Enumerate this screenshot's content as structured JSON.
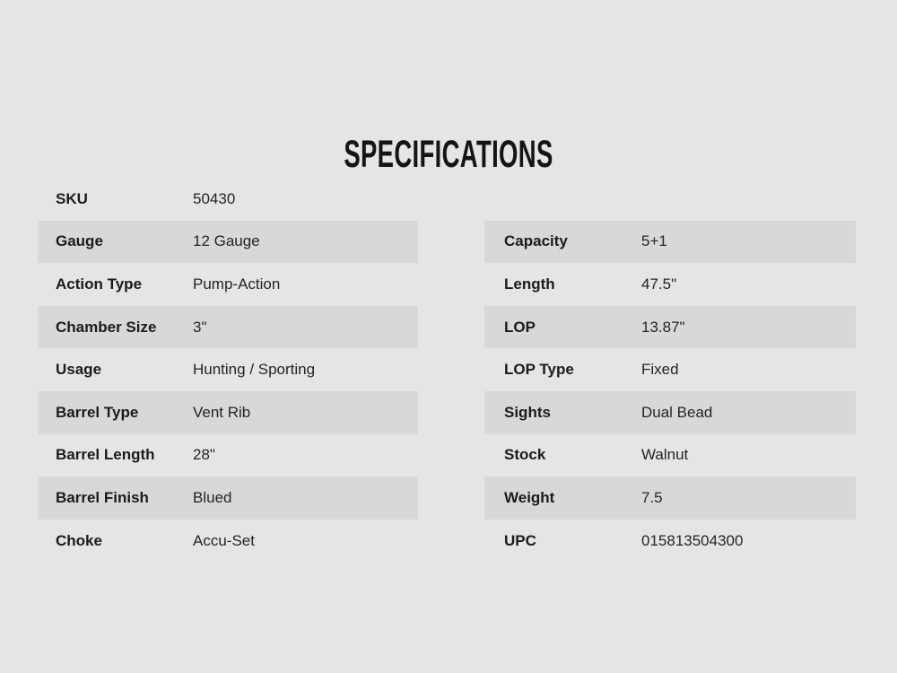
{
  "page": {
    "title": "SPECIFICATIONS",
    "background_color": "#e6e5e4",
    "stripe_color": "#d9d8d6",
    "text_color": "#1b1b1b"
  },
  "specs": {
    "left": [
      {
        "label": "SKU",
        "value": "50430"
      },
      {
        "label": "Gauge",
        "value": "12 Gauge"
      },
      {
        "label": "Action Type",
        "value": "Pump-Action"
      },
      {
        "label": "Chamber Size",
        "value": "3\""
      },
      {
        "label": "Usage",
        "value": "Hunting / Sporting"
      },
      {
        "label": "Barrel Type",
        "value": "Vent Rib"
      },
      {
        "label": "Barrel Length",
        "value": "28\""
      },
      {
        "label": "Barrel Finish",
        "value": "Blued"
      },
      {
        "label": "Choke",
        "value": "Accu-Set"
      }
    ],
    "right": [
      {
        "label": "Capacity",
        "value": "5+1"
      },
      {
        "label": "Length",
        "value": "47.5\""
      },
      {
        "label": "LOP",
        "value": "13.87\""
      },
      {
        "label": "LOP Type",
        "value": "Fixed"
      },
      {
        "label": "Sights",
        "value": "Dual Bead"
      },
      {
        "label": "Stock",
        "value": "Walnut"
      },
      {
        "label": "Weight",
        "value": "7.5"
      },
      {
        "label": "UPC",
        "value": "015813504300"
      }
    ]
  }
}
